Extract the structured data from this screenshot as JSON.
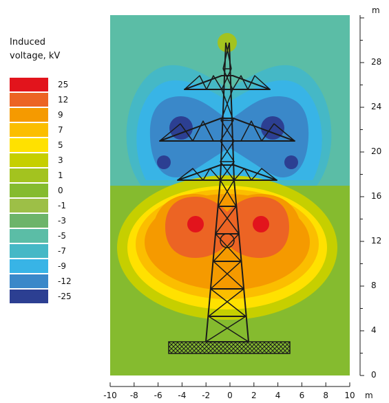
{
  "legend": {
    "title_line1": "Induced",
    "title_line2": "voltage, kV",
    "levels": [
      {
        "label": "25",
        "color": "#e2141c"
      },
      {
        "label": "12",
        "color": "#ec6424"
      },
      {
        "label": "9",
        "color": "#f59a00"
      },
      {
        "label": "7",
        "color": "#fbbe00"
      },
      {
        "label": "5",
        "color": "#ffe100"
      },
      {
        "label": "3",
        "color": "#c6cf00"
      },
      {
        "label": "1",
        "color": "#a3c31f"
      },
      {
        "label": "0",
        "color": "#85bb2f"
      },
      {
        "label": "-1",
        "color": "#9dbf47"
      },
      {
        "label": "-3",
        "color": "#6db46a"
      },
      {
        "label": "-5",
        "color": "#5bbda6"
      },
      {
        "label": "-7",
        "color": "#45b8c6"
      },
      {
        "label": "-9",
        "color": "#38b4e6"
      },
      {
        "label": "-12",
        "color": "#3a88c9"
      },
      {
        "label": "-25",
        "color": "#2c3f92"
      }
    ]
  },
  "y_axis": {
    "unit": "m",
    "ticks": [
      "0",
      "4",
      "8",
      "12",
      "16",
      "20",
      "24",
      "28"
    ]
  },
  "x_axis": {
    "unit": "m",
    "ticks": [
      "-10",
      "-8",
      "-6",
      "-4",
      "-2",
      "0",
      "2",
      "4",
      "6",
      "8",
      "10"
    ]
  },
  "colors": {
    "field_top": "#5bbda6",
    "field_bottom": "#85bb2f",
    "tower": "#1a1a1a",
    "conductor_top": "#2c3f92",
    "conductor_bottom": "#e2141c",
    "ground_wire": "#a3c31f"
  }
}
